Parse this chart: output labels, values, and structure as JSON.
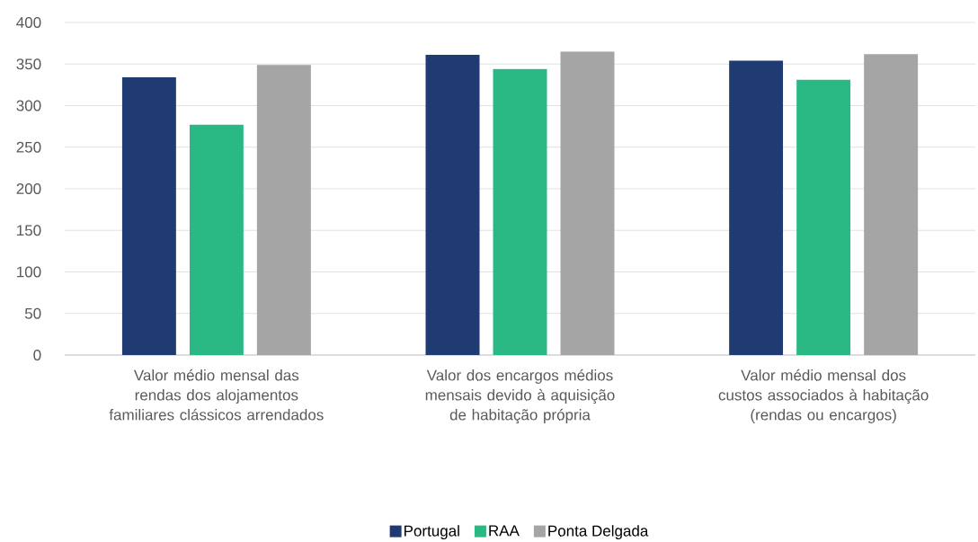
{
  "chart_data": {
    "type": "bar",
    "categories": [
      "Valor médio mensal das rendas dos alojamentos familiares clássicos arrendados",
      "Valor dos encargos médios mensais devido à aquisição de habitação própria",
      "Valor médio mensal dos custos associados à habitação (rendas ou encargos)"
    ],
    "series": [
      {
        "name": "Portugal",
        "color": "#203a72",
        "values": [
          334,
          361,
          354
        ]
      },
      {
        "name": "RAA",
        "color": "#2ab885",
        "values": [
          277,
          344,
          331
        ]
      },
      {
        "name": "Ponta Delgada",
        "color": "#a5a5a5",
        "values": [
          349,
          365,
          362
        ]
      }
    ],
    "ylim": [
      0,
      400
    ],
    "yticks": [
      0,
      50,
      100,
      150,
      200,
      250,
      300,
      350,
      400
    ],
    "grid": "y",
    "legend": "bottom"
  }
}
